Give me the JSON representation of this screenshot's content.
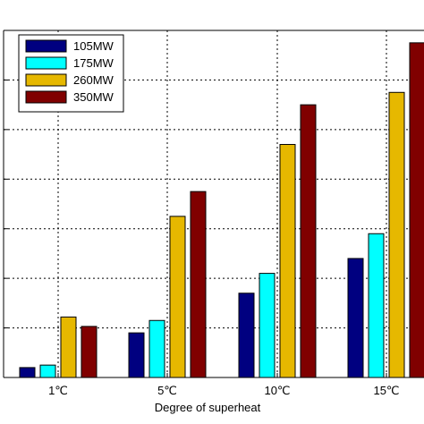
{
  "chart_data": {
    "type": "bar",
    "categories": [
      "1℃",
      "5℃",
      "10℃",
      "15℃"
    ],
    "series": [
      {
        "name": "105MW",
        "color": "#000080",
        "values": [
          0.2,
          0.9,
          1.7,
          2.4
        ]
      },
      {
        "name": "175MW",
        "color": "#00ffff",
        "values": [
          0.25,
          1.15,
          2.1,
          2.9
        ]
      },
      {
        "name": "260MW",
        "color": "#e6b800",
        "values": [
          1.22,
          3.25,
          4.7,
          5.75
        ]
      },
      {
        "name": "350MW",
        "color": "#800000",
        "values": [
          1.03,
          3.75,
          5.5,
          6.75
        ]
      }
    ],
    "xlabel": "Degree of superheat",
    "ylabel": "",
    "ylim": [
      0,
      7
    ],
    "grid": true,
    "legend_position": "top-left"
  }
}
